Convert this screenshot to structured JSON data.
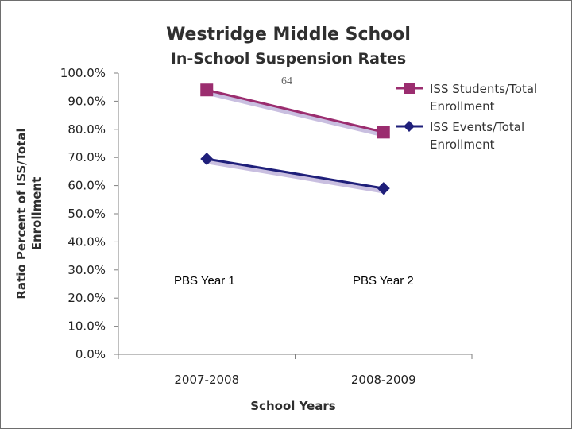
{
  "chart_data": {
    "type": "line",
    "title": "Westridge Middle School",
    "subtitle": "In-School Suspension Rates",
    "categories": [
      "2007-2008",
      "2008-2009"
    ],
    "series": [
      {
        "name": "ISS Students/Total Enrollment",
        "legend_lines": [
          "ISS Students/Total",
          "Enrollment"
        ],
        "values": [
          94.0,
          79.0
        ],
        "color": "#9b2d6f",
        "marker": "square"
      },
      {
        "name": "ISS Events/Total Enrollment",
        "legend_lines": [
          "ISS Events/Total",
          "Enrollment"
        ],
        "values": [
          69.5,
          59.0
        ],
        "color": "#1f1f7a",
        "marker": "diamond"
      }
    ],
    "xlabel": "School Years",
    "ylabel_lines": [
      "Ratio Percent of ISS/Total",
      "Enrollment"
    ],
    "ylim": [
      0,
      100
    ],
    "ytick_step": 10,
    "ytick_format": "percent_1dp",
    "grid": false,
    "legend_position": "right",
    "annotations": [
      "PBS Year 1",
      "PBS Year 2"
    ],
    "page_number": "64"
  }
}
